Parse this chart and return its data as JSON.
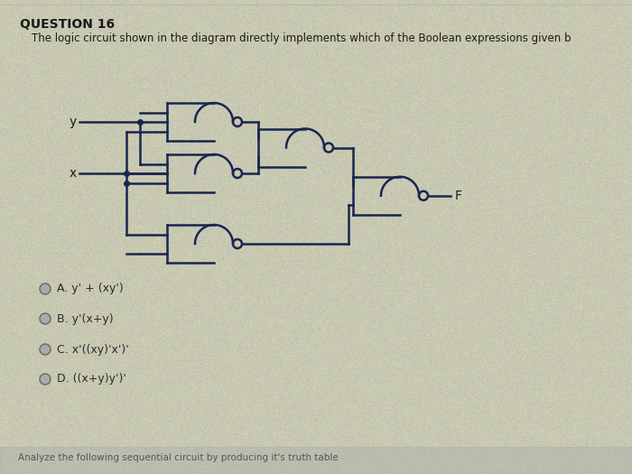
{
  "bg_color": "#c8c9b0",
  "title": "QUESTION 16",
  "subtitle": "The logic circuit shown in the diagram directly implements which of the Boolean expressions given b",
  "title_fontsize": 10,
  "subtitle_fontsize": 8.5,
  "label_y": "y",
  "label_x": "x",
  "label_f": "F",
  "options": [
    "A. y' + (xy')",
    "B. y'(x+y)",
    "C. x'((xy)'x')'",
    "D. ((x+y)y')'"
  ],
  "footer": "Analyze the following sequential circuit by producing it's truth table",
  "gate_color": "#1a2550",
  "wire_color": "#1a2550",
  "text_color": "#1a1a1a",
  "option_color": "#2a2a2a",
  "photo_noise": true
}
